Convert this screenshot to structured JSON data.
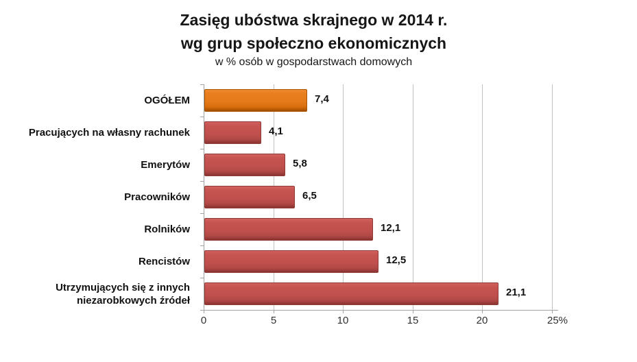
{
  "chart_data": {
    "type": "bar",
    "orientation": "horizontal",
    "title": "Zasięg ubóstwa skrajnego w 2014 r.",
    "title_line2": "wg grup społeczno ekonomicznych",
    "subtitle": "w % osób w gospodarstwach domowych",
    "categories": [
      "OGÓŁEM",
      "Pracujących na własny rachunek",
      "Emerytów",
      "Pracowników",
      "Rolników",
      "Rencistów",
      "Utrzymujących się z innych niezarobkowych źródeł"
    ],
    "values": [
      7.4,
      4.1,
      5.8,
      6.5,
      12.1,
      12.5,
      21.1
    ],
    "value_labels": [
      "7,4",
      "4,1",
      "5,8",
      "6,5",
      "12,1",
      "12,5",
      "21,1"
    ],
    "highlight_index": 0,
    "xlim": [
      0,
      25
    ],
    "x_ticks": [
      0,
      5,
      10,
      15,
      20,
      25
    ],
    "x_tick_labels": [
      "0",
      "5",
      "10",
      "15",
      "20",
      "25%"
    ],
    "grid": true,
    "legend": "none",
    "colors": {
      "highlight_bar": "#e57a1b",
      "default_bar": "#c0504d",
      "gridline": "#c2c2c2",
      "axis": "#a3a3a3",
      "text": "#111111"
    }
  }
}
